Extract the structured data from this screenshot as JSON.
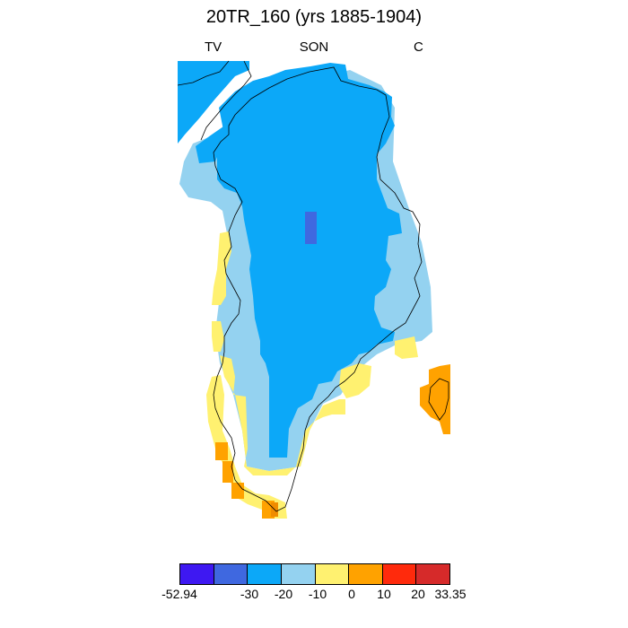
{
  "title": "20TR_160 (yrs 1885-1904)",
  "subtitle": {
    "left": "TV",
    "center": "SON",
    "right": "C"
  },
  "colorbar": {
    "colors": [
      "#3e18f2",
      "#3f68e0",
      "#0ca8f8",
      "#94d2f0",
      "#fff170",
      "#ffa200",
      "#ff2a0c",
      "#d62a2a"
    ],
    "labels": [
      "-52.94",
      "-30",
      "-20",
      "-10",
      "0",
      "10",
      "20",
      "33.35"
    ]
  },
  "map": {
    "region": "Greenland",
    "field_colors": {
      "deep": "#3f68e0",
      "main": "#0ca8f8",
      "light": "#94d2f0",
      "yellow": "#fff170",
      "orange": "#ffa200",
      "orange_dark": "#f08c00"
    },
    "coastline_color": "#000000"
  }
}
